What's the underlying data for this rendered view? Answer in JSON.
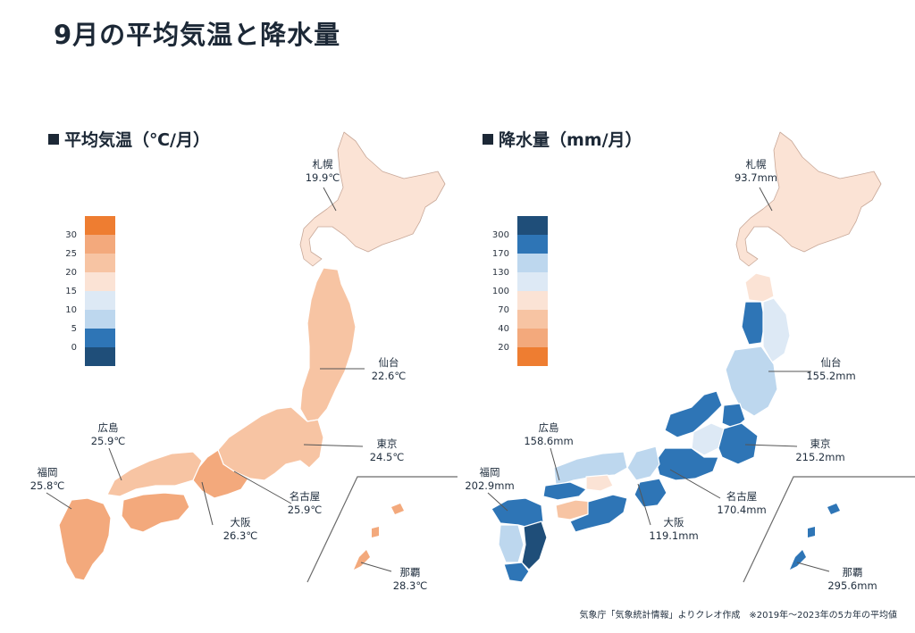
{
  "title": "9月の平均気温と降水量",
  "temperature": {
    "heading": "平均気温（℃/月）",
    "legend_ticks": [
      "30",
      "25",
      "20",
      "15",
      "10",
      "5",
      "0"
    ],
    "legend_colors": [
      "#ee7d31",
      "#f3a97c",
      "#f7c4a3",
      "#fbe3d5",
      "#dde9f5",
      "#bdd7ee",
      "#2e75b6",
      "#1f4e79"
    ],
    "cities": [
      {
        "name": "札幌",
        "value": "19.9℃"
      },
      {
        "name": "仙台",
        "value": "22.6℃"
      },
      {
        "name": "東京",
        "value": "24.5℃"
      },
      {
        "name": "名古屋",
        "value": "25.9℃"
      },
      {
        "name": "大阪",
        "value": "26.3℃"
      },
      {
        "name": "広島",
        "value": "25.9℃"
      },
      {
        "name": "福岡",
        "value": "25.8℃"
      },
      {
        "name": "那覇",
        "value": "28.3℃"
      }
    ]
  },
  "precipitation": {
    "heading": "降水量（mm/月）",
    "legend_ticks": [
      "300",
      "170",
      "130",
      "100",
      "70",
      "40",
      "20"
    ],
    "legend_colors": [
      "#1f4e79",
      "#2e75b6",
      "#bdd7ee",
      "#dde9f5",
      "#fbe3d5",
      "#f7c4a3",
      "#f3a97c",
      "#ee7d31"
    ],
    "cities": [
      {
        "name": "札幌",
        "value": "93.7mm"
      },
      {
        "name": "仙台",
        "value": "155.2mm"
      },
      {
        "name": "東京",
        "value": "215.2mm"
      },
      {
        "name": "名古屋",
        "value": "170.4mm"
      },
      {
        "name": "大阪",
        "value": "119.1mm"
      },
      {
        "name": "広島",
        "value": "158.6mm"
      },
      {
        "name": "福岡",
        "value": "202.9mm"
      },
      {
        "name": "那覇",
        "value": "295.6mm"
      }
    ]
  },
  "footnote": "気象庁「気象統計情報」よりクレオ作成　※2019年～2023年の5カ年の平均値"
}
